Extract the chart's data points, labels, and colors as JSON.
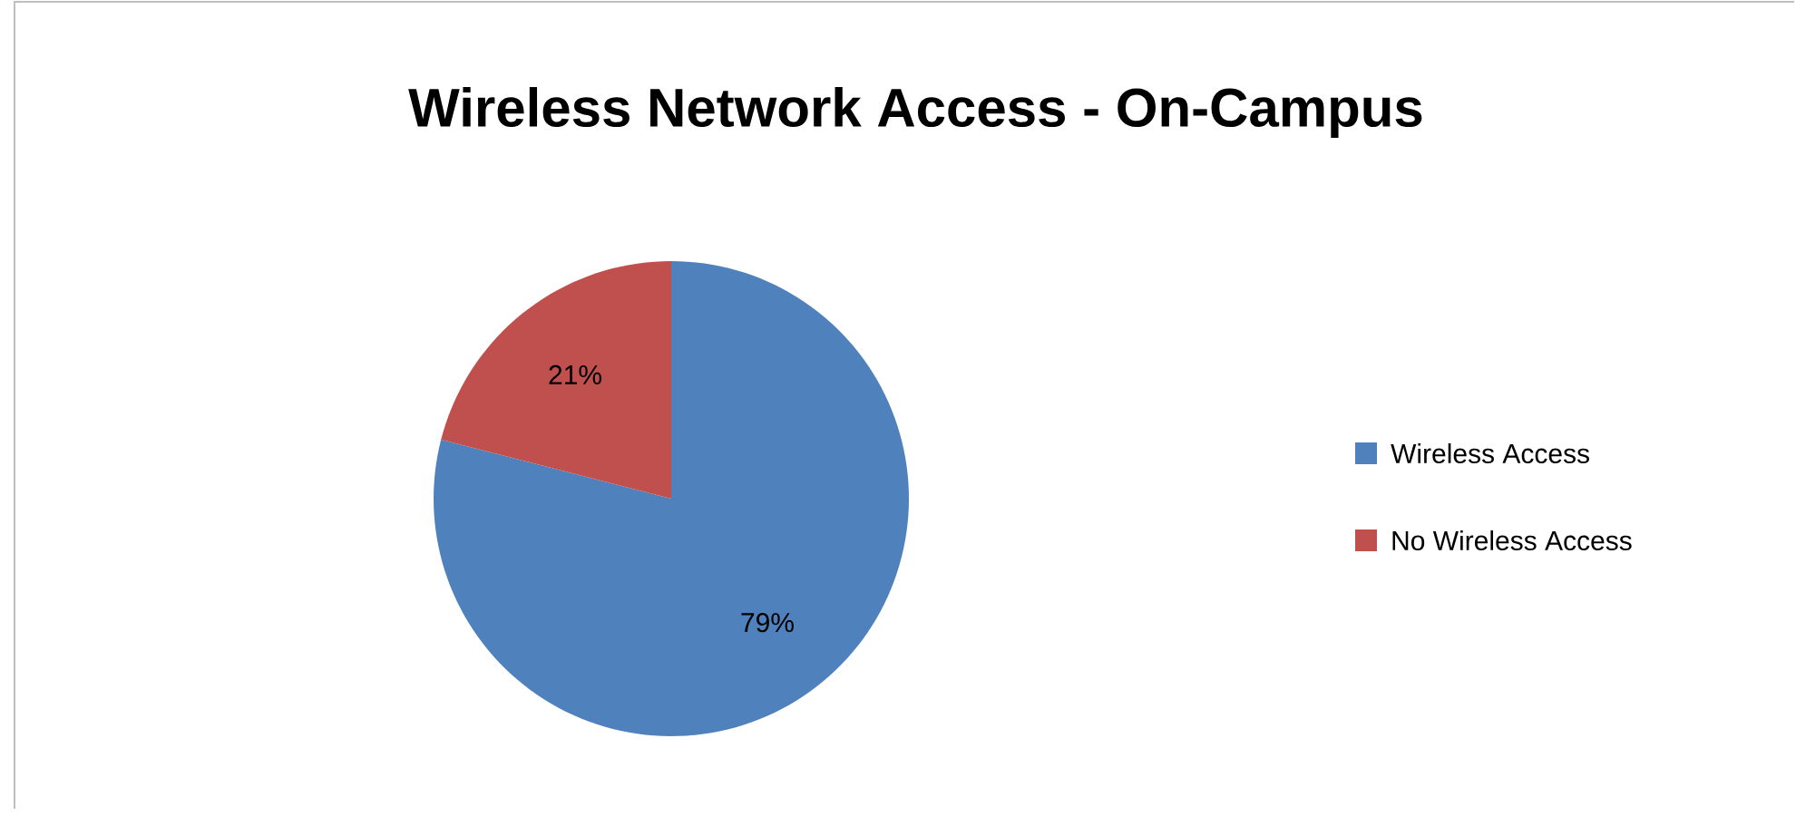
{
  "chart_data": {
    "type": "pie",
    "title": "Wireless Network Access - On-Campus",
    "categories": [
      "Wireless Access",
      "No Wireless Access"
    ],
    "values": [
      79,
      21
    ],
    "colors": [
      "#4f81bd",
      "#c0504d"
    ],
    "value_labels": [
      "79%",
      "21%"
    ],
    "legend": "right"
  }
}
